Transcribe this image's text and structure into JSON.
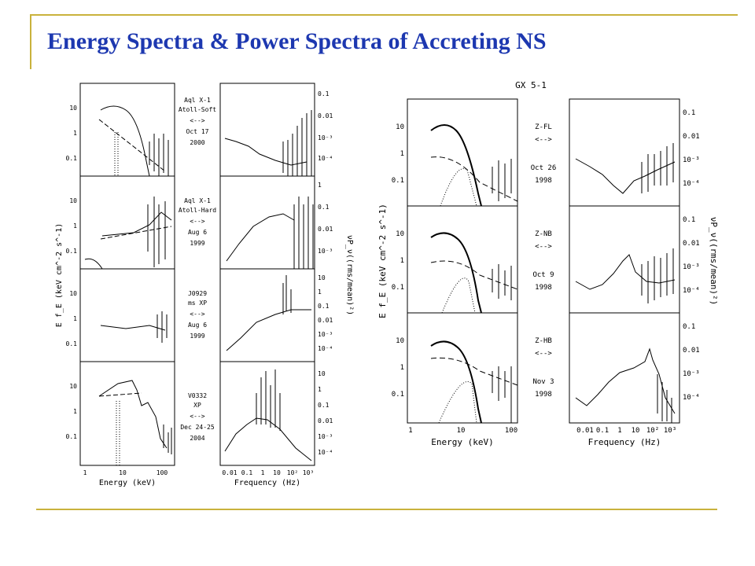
{
  "slide": {
    "title": "Energy Spectra & Power Spectra of Accreting NS"
  },
  "colors": {
    "title": "#1d38b0",
    "rule": "#c9b23c"
  },
  "left_figure": {
    "energy_axis_label": "Energy (keV)",
    "freq_axis_label": "Frequency (Hz)",
    "ylabel_left": "E f_E (keV cm^-2 s^-1)",
    "ylabel_right": "νP_ν((rms/mean)²)",
    "energy_ticks": [
      "1",
      "10",
      "100"
    ],
    "freq_ticks": [
      "0.01",
      "0.1",
      "1",
      "10",
      "10²",
      "10³"
    ],
    "rows": [
      {
        "labels": [
          "Aql X-1",
          "Atoll-Soft",
          "<-->",
          "Oct 17",
          "2000"
        ],
        "ef_ticks": [
          "10",
          "1",
          "0.1"
        ],
        "pow_ticks": [
          "0.1",
          "0.01",
          "10⁻³",
          "10⁻⁴"
        ]
      },
      {
        "labels": [
          "Aql X-1",
          "Atoll-Hard",
          "<-->",
          "Aug 6",
          "1999"
        ],
        "ef_ticks": [
          "10",
          "1",
          "0.1"
        ],
        "pow_ticks": [
          "1",
          "0.1",
          "0.01",
          "10⁻³"
        ]
      },
      {
        "labels": [
          "J0929",
          "ms XP",
          "<-->",
          "Aug 6",
          "1999"
        ],
        "ef_ticks": [
          "10",
          "1",
          "0.1"
        ],
        "pow_ticks": [
          "10",
          "1",
          "0.1",
          "0.01",
          "10⁻³",
          "10⁻⁴"
        ]
      },
      {
        "labels": [
          "V0332",
          "XP",
          "<-->",
          "Dec 24-25",
          "2004"
        ],
        "ef_ticks": [
          "10",
          "1",
          "0.1"
        ],
        "pow_ticks": [
          "10",
          "1",
          "0.1",
          "0.01",
          "10⁻³",
          "10⁻⁴"
        ]
      }
    ]
  },
  "right_figure": {
    "source": "GX 5-1",
    "energy_axis_label": "Energy (keV)",
    "freq_axis_label": "Frequency (Hz)",
    "ylabel_left": "E f_E (keV cm^-2 s^-1)",
    "ylabel_right": "νP_ν((rms/mean)²)",
    "energy_ticks": [
      "1",
      "10",
      "100"
    ],
    "freq_ticks": [
      "0.01",
      "0.1",
      "1",
      "10",
      "10²",
      "10³"
    ],
    "rows": [
      {
        "labels": [
          "Z-FL",
          "<-->",
          "Oct 26",
          "1998"
        ],
        "ef_ticks": [
          "10",
          "1",
          "0.1"
        ],
        "pow_ticks": [
          "0.1",
          "0.01",
          "10⁻³",
          "10⁻⁴"
        ]
      },
      {
        "labels": [
          "Z-NB",
          "<-->",
          "Oct 9",
          "1998"
        ],
        "ef_ticks": [
          "10",
          "1",
          "0.1"
        ],
        "pow_ticks": [
          "0.1",
          "0.01",
          "10⁻³",
          "10⁻⁴"
        ]
      },
      {
        "labels": [
          "Z-HB",
          "<-->",
          "Nov 3",
          "1998"
        ],
        "ef_ticks": [
          "10",
          "1",
          "0.1"
        ],
        "pow_ticks": [
          "0.1",
          "0.01",
          "10⁻³",
          "10⁻⁴"
        ]
      }
    ]
  }
}
